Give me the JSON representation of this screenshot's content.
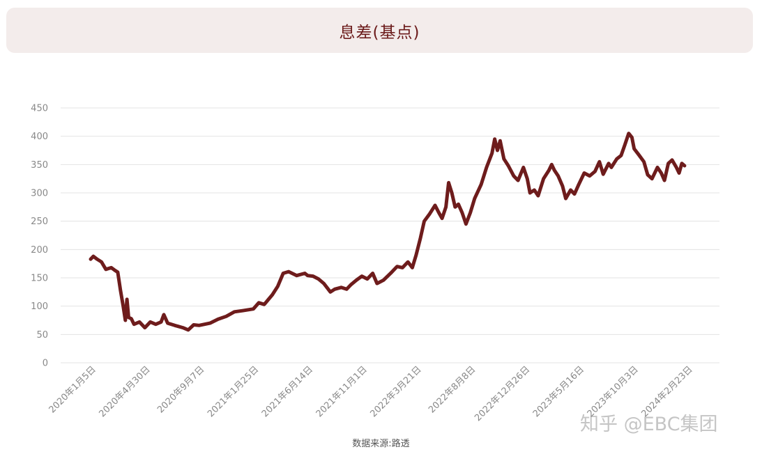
{
  "header": {
    "title": "息差(基点)"
  },
  "footer": {
    "source": "数据来源:路透"
  },
  "watermark": {
    "text": "知乎 @EBC集团"
  },
  "colors": {
    "line": "#6e1c1c",
    "grid": "#e3e3e3",
    "tick": "#888888",
    "title_bg": "#f3eceb"
  },
  "chart_data": {
    "type": "line",
    "title": "息差(基点)",
    "xlabel": "",
    "ylabel": "",
    "ylim": [
      0,
      450
    ],
    "yticks": [
      0,
      50,
      100,
      150,
      200,
      250,
      300,
      350,
      400,
      450
    ],
    "xticks": [
      "2020年1月5日",
      "2020年4月30日",
      "2020年9月7日",
      "2021年1月25日",
      "2021年6月14日",
      "2021年11月1日",
      "2022年3月21日",
      "2022年8月8日",
      "2022年12月26日",
      "2023年5月16日",
      "2023年10月3日",
      "2024年2月23日"
    ],
    "grid": true,
    "legend": "none",
    "series": [
      {
        "values": [
          [
            0,
            183
          ],
          [
            0.05,
            188
          ],
          [
            0.12,
            183
          ],
          [
            0.2,
            178
          ],
          [
            0.28,
            165
          ],
          [
            0.38,
            168
          ],
          [
            0.45,
            163
          ],
          [
            0.5,
            160
          ],
          [
            0.55,
            128
          ],
          [
            0.6,
            100
          ],
          [
            0.64,
            75
          ],
          [
            0.67,
            112
          ],
          [
            0.7,
            80
          ],
          [
            0.75,
            78
          ],
          [
            0.8,
            68
          ],
          [
            0.9,
            72
          ],
          [
            1.0,
            62
          ],
          [
            1.1,
            72
          ],
          [
            1.2,
            68
          ],
          [
            1.3,
            72
          ],
          [
            1.35,
            85
          ],
          [
            1.42,
            70
          ],
          [
            1.55,
            66
          ],
          [
            1.7,
            62
          ],
          [
            1.8,
            58
          ],
          [
            1.9,
            67
          ],
          [
            2.0,
            66
          ],
          [
            2.2,
            70
          ],
          [
            2.35,
            77
          ],
          [
            2.5,
            82
          ],
          [
            2.65,
            90
          ],
          [
            2.8,
            92
          ],
          [
            3.0,
            95
          ],
          [
            3.1,
            106
          ],
          [
            3.2,
            103
          ],
          [
            3.35,
            120
          ],
          [
            3.45,
            135
          ],
          [
            3.55,
            158
          ],
          [
            3.65,
            161
          ],
          [
            3.8,
            154
          ],
          [
            3.95,
            158
          ],
          [
            4.0,
            154
          ],
          [
            4.1,
            153
          ],
          [
            4.2,
            148
          ],
          [
            4.3,
            140
          ],
          [
            4.42,
            125
          ],
          [
            4.5,
            130
          ],
          [
            4.62,
            133
          ],
          [
            4.72,
            130
          ],
          [
            4.8,
            138
          ],
          [
            4.9,
            146
          ],
          [
            5.0,
            153
          ],
          [
            5.1,
            148
          ],
          [
            5.2,
            158
          ],
          [
            5.28,
            140
          ],
          [
            5.4,
            146
          ],
          [
            5.55,
            160
          ],
          [
            5.65,
            170
          ],
          [
            5.75,
            168
          ],
          [
            5.85,
            178
          ],
          [
            5.93,
            168
          ],
          [
            6.0,
            190
          ],
          [
            6.08,
            220
          ],
          [
            6.15,
            250
          ],
          [
            6.25,
            263
          ],
          [
            6.35,
            278
          ],
          [
            6.42,
            265
          ],
          [
            6.48,
            255
          ],
          [
            6.55,
            275
          ],
          [
            6.6,
            318
          ],
          [
            6.66,
            300
          ],
          [
            6.72,
            275
          ],
          [
            6.78,
            280
          ],
          [
            6.85,
            265
          ],
          [
            6.92,
            245
          ],
          [
            7.0,
            265
          ],
          [
            7.08,
            290
          ],
          [
            7.2,
            315
          ],
          [
            7.3,
            345
          ],
          [
            7.4,
            370
          ],
          [
            7.45,
            395
          ],
          [
            7.5,
            375
          ],
          [
            7.55,
            392
          ],
          [
            7.62,
            360
          ],
          [
            7.7,
            348
          ],
          [
            7.8,
            330
          ],
          [
            7.88,
            322
          ],
          [
            7.98,
            345
          ],
          [
            8.05,
            325
          ],
          [
            8.1,
            300
          ],
          [
            8.18,
            305
          ],
          [
            8.25,
            295
          ],
          [
            8.35,
            325
          ],
          [
            8.45,
            340
          ],
          [
            8.5,
            350
          ],
          [
            8.55,
            340
          ],
          [
            8.62,
            330
          ],
          [
            8.7,
            312
          ],
          [
            8.76,
            290
          ],
          [
            8.85,
            305
          ],
          [
            8.92,
            298
          ],
          [
            9.0,
            315
          ],
          [
            9.1,
            335
          ],
          [
            9.2,
            330
          ],
          [
            9.3,
            338
          ],
          [
            9.38,
            355
          ],
          [
            9.45,
            333
          ],
          [
            9.55,
            352
          ],
          [
            9.6,
            345
          ],
          [
            9.7,
            360
          ],
          [
            9.78,
            366
          ],
          [
            9.85,
            385
          ],
          [
            9.92,
            405
          ],
          [
            9.98,
            398
          ],
          [
            10.02,
            378
          ],
          [
            10.1,
            368
          ],
          [
            10.2,
            355
          ],
          [
            10.27,
            332
          ],
          [
            10.35,
            325
          ],
          [
            10.45,
            345
          ],
          [
            10.52,
            335
          ],
          [
            10.58,
            322
          ],
          [
            10.65,
            352
          ],
          [
            10.72,
            358
          ],
          [
            10.8,
            345
          ],
          [
            10.85,
            335
          ],
          [
            10.9,
            352
          ],
          [
            10.95,
            348
          ]
        ]
      }
    ]
  }
}
